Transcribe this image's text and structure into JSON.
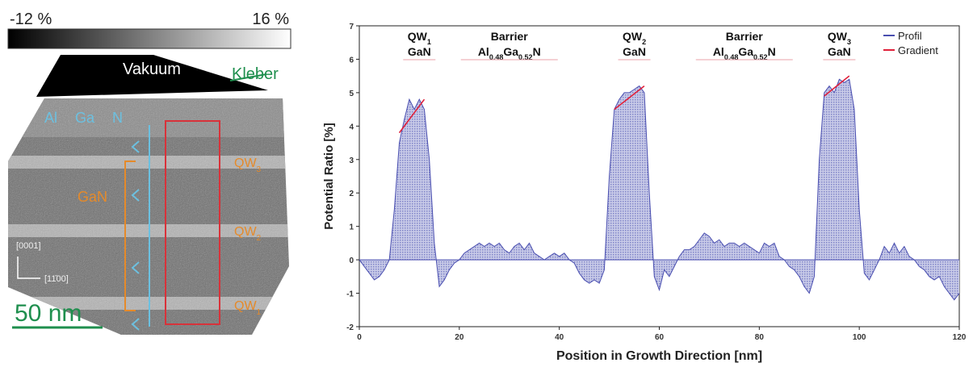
{
  "left_panel": {
    "colorbar_min": "-12 %",
    "colorbar_max": "16 %",
    "vacuum": "Vakuum",
    "glue": "Kleber",
    "barrier_label": [
      "Al",
      "Ga",
      "N"
    ],
    "gan": "GaN",
    "qw_labels": [
      [
        "QW",
        "3"
      ],
      [
        "QW",
        "2"
      ],
      [
        "QW",
        "1"
      ]
    ],
    "direction_labels": [
      "[0001]",
      "[11̄00]"
    ],
    "scale_bar": "50 nm"
  },
  "chart_data": {
    "type": "line",
    "xlabel": "Position in Growth Direction [nm]",
    "ylabel": "Potential Ratio [%]",
    "xlim": [
      0,
      120
    ],
    "ylim": [
      -2,
      7
    ],
    "xticks": [
      0,
      20,
      40,
      60,
      80,
      100,
      120
    ],
    "yticks": [
      -2,
      -1,
      0,
      1,
      2,
      3,
      4,
      5,
      6,
      7
    ],
    "legend": "top-right",
    "area_fill": true,
    "annotations": [
      {
        "line1": [
          "QW",
          "1"
        ],
        "line2": [
          "GaN"
        ]
      },
      {
        "line1": [
          "Barrier"
        ],
        "line2": [
          "Al",
          "0.48",
          "Ga",
          "0.52",
          "N"
        ]
      },
      {
        "line1": [
          "QW",
          "2"
        ],
        "line2": [
          "GaN"
        ]
      },
      {
        "line1": [
          "Barrier"
        ],
        "line2": [
          "Al",
          "0.48",
          "Ga",
          "0.52",
          "N"
        ]
      },
      {
        "line1": [
          "QW",
          "3"
        ],
        "line2": [
          "GaN"
        ]
      }
    ],
    "series": [
      {
        "name": "Profil",
        "color": "#4a4fb0",
        "x": [
          0,
          1,
          2,
          3,
          4,
          5,
          6,
          7,
          8,
          9,
          10,
          11,
          12,
          13,
          14,
          15,
          16,
          17,
          18,
          19,
          20,
          21,
          22,
          23,
          24,
          25,
          26,
          27,
          28,
          29,
          30,
          31,
          32,
          33,
          34,
          35,
          36,
          37,
          38,
          39,
          40,
          41,
          42,
          43,
          44,
          45,
          46,
          47,
          48,
          49,
          50,
          51,
          52,
          53,
          54,
          55,
          56,
          57,
          58,
          59,
          60,
          61,
          62,
          63,
          64,
          65,
          66,
          67,
          68,
          69,
          70,
          71,
          72,
          73,
          74,
          75,
          76,
          77,
          78,
          79,
          80,
          81,
          82,
          83,
          84,
          85,
          86,
          87,
          88,
          89,
          90,
          91,
          92,
          93,
          94,
          95,
          96,
          97,
          98,
          99,
          100,
          101,
          102,
          103,
          104,
          105,
          106,
          107,
          108,
          109,
          110,
          111,
          112,
          113,
          114,
          115,
          116,
          117,
          118,
          119,
          120
        ],
        "values": [
          0,
          -0.2,
          -0.4,
          -0.6,
          -0.5,
          -0.3,
          0,
          1.5,
          3.5,
          4.2,
          4.8,
          4.5,
          4.8,
          4.5,
          3.0,
          0.5,
          -0.8,
          -0.6,
          -0.3,
          -0.1,
          0,
          0.2,
          0.3,
          0.4,
          0.5,
          0.4,
          0.5,
          0.4,
          0.5,
          0.3,
          0.2,
          0.4,
          0.5,
          0.3,
          0.5,
          0.2,
          0.1,
          0,
          0.1,
          0.2,
          0.1,
          0.2,
          0,
          -0.1,
          -0.4,
          -0.6,
          -0.7,
          -0.6,
          -0.7,
          -0.3,
          2.5,
          4.5,
          4.8,
          5.0,
          5.0,
          5.1,
          5.2,
          5.0,
          2.0,
          -0.5,
          -0.9,
          -0.3,
          -0.5,
          -0.2,
          0.1,
          0.3,
          0.3,
          0.4,
          0.6,
          0.8,
          0.7,
          0.5,
          0.6,
          0.4,
          0.5,
          0.5,
          0.4,
          0.5,
          0.4,
          0.3,
          0.2,
          0.5,
          0.4,
          0.5,
          0.1,
          0,
          -0.2,
          -0.3,
          -0.5,
          -0.8,
          -1.0,
          -0.5,
          3.0,
          5.0,
          5.2,
          5.0,
          5.4,
          5.3,
          5.4,
          4.5,
          1.5,
          -0.4,
          -0.6,
          -0.3,
          0,
          0.4,
          0.2,
          0.5,
          0.2,
          0.4,
          0.1,
          0,
          -0.2,
          -0.3,
          -0.5,
          -0.6,
          -0.5,
          -0.8,
          -1.0,
          -1.2,
          -1.0
        ]
      },
      {
        "name": "Gradient",
        "color": "#e0203a",
        "x": [
          8,
          13,
          null,
          51,
          57,
          null,
          93,
          98
        ],
        "values": [
          3.8,
          4.8,
          null,
          4.5,
          5.2,
          null,
          4.9,
          5.5
        ]
      }
    ]
  }
}
